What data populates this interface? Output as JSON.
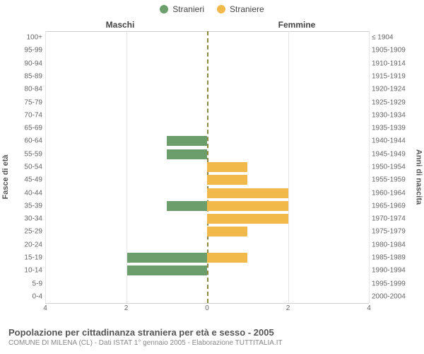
{
  "legend": {
    "male": {
      "label": "Stranieri",
      "color": "#6b9e6b"
    },
    "female": {
      "label": "Straniere",
      "color": "#f0b94a"
    }
  },
  "headers": {
    "male": "Maschi",
    "female": "Femmine"
  },
  "axis": {
    "left_title": "Fasce di età",
    "right_title": "Anni di nascita",
    "xmax": 4,
    "xticks": [
      4,
      2,
      0,
      2,
      4
    ],
    "grid_color": "#e6e6e6",
    "zero_line_color": "#8a8a45",
    "border_color": "#cfcfcf"
  },
  "rows": [
    {
      "age": "100+",
      "year": "≤ 1904",
      "m": 0,
      "f": 0
    },
    {
      "age": "95-99",
      "year": "1905-1909",
      "m": 0,
      "f": 0
    },
    {
      "age": "90-94",
      "year": "1910-1914",
      "m": 0,
      "f": 0
    },
    {
      "age": "85-89",
      "year": "1915-1919",
      "m": 0,
      "f": 0
    },
    {
      "age": "80-84",
      "year": "1920-1924",
      "m": 0,
      "f": 0
    },
    {
      "age": "75-79",
      "year": "1925-1929",
      "m": 0,
      "f": 0
    },
    {
      "age": "70-74",
      "year": "1930-1934",
      "m": 0,
      "f": 0
    },
    {
      "age": "65-69",
      "year": "1935-1939",
      "m": 0,
      "f": 0
    },
    {
      "age": "60-64",
      "year": "1940-1944",
      "m": 1,
      "f": 0
    },
    {
      "age": "55-59",
      "year": "1945-1949",
      "m": 1,
      "f": 0
    },
    {
      "age": "50-54",
      "year": "1950-1954",
      "m": 0,
      "f": 1
    },
    {
      "age": "45-49",
      "year": "1955-1959",
      "m": 0,
      "f": 1
    },
    {
      "age": "40-44",
      "year": "1960-1964",
      "m": 0,
      "f": 2
    },
    {
      "age": "35-39",
      "year": "1965-1969",
      "m": 1,
      "f": 2
    },
    {
      "age": "30-34",
      "year": "1970-1974",
      "m": 0,
      "f": 2
    },
    {
      "age": "25-29",
      "year": "1975-1979",
      "m": 0,
      "f": 1
    },
    {
      "age": "20-24",
      "year": "1980-1984",
      "m": 0,
      "f": 0
    },
    {
      "age": "15-19",
      "year": "1985-1989",
      "m": 2,
      "f": 1
    },
    {
      "age": "10-14",
      "year": "1990-1994",
      "m": 2,
      "f": 0
    },
    {
      "age": "5-9",
      "year": "1995-1999",
      "m": 0,
      "f": 0
    },
    {
      "age": "0-4",
      "year": "2000-2004",
      "m": 0,
      "f": 0
    }
  ],
  "footer": {
    "title": "Popolazione per cittadinanza straniera per età e sesso - 2005",
    "subtitle": "COMUNE DI MILENA (CL) - Dati ISTAT 1° gennaio 2005 - Elaborazione TUTTITALIA.IT"
  },
  "style": {
    "background": "#ffffff",
    "tick_fontsize": 10,
    "header_fontsize": 12
  }
}
